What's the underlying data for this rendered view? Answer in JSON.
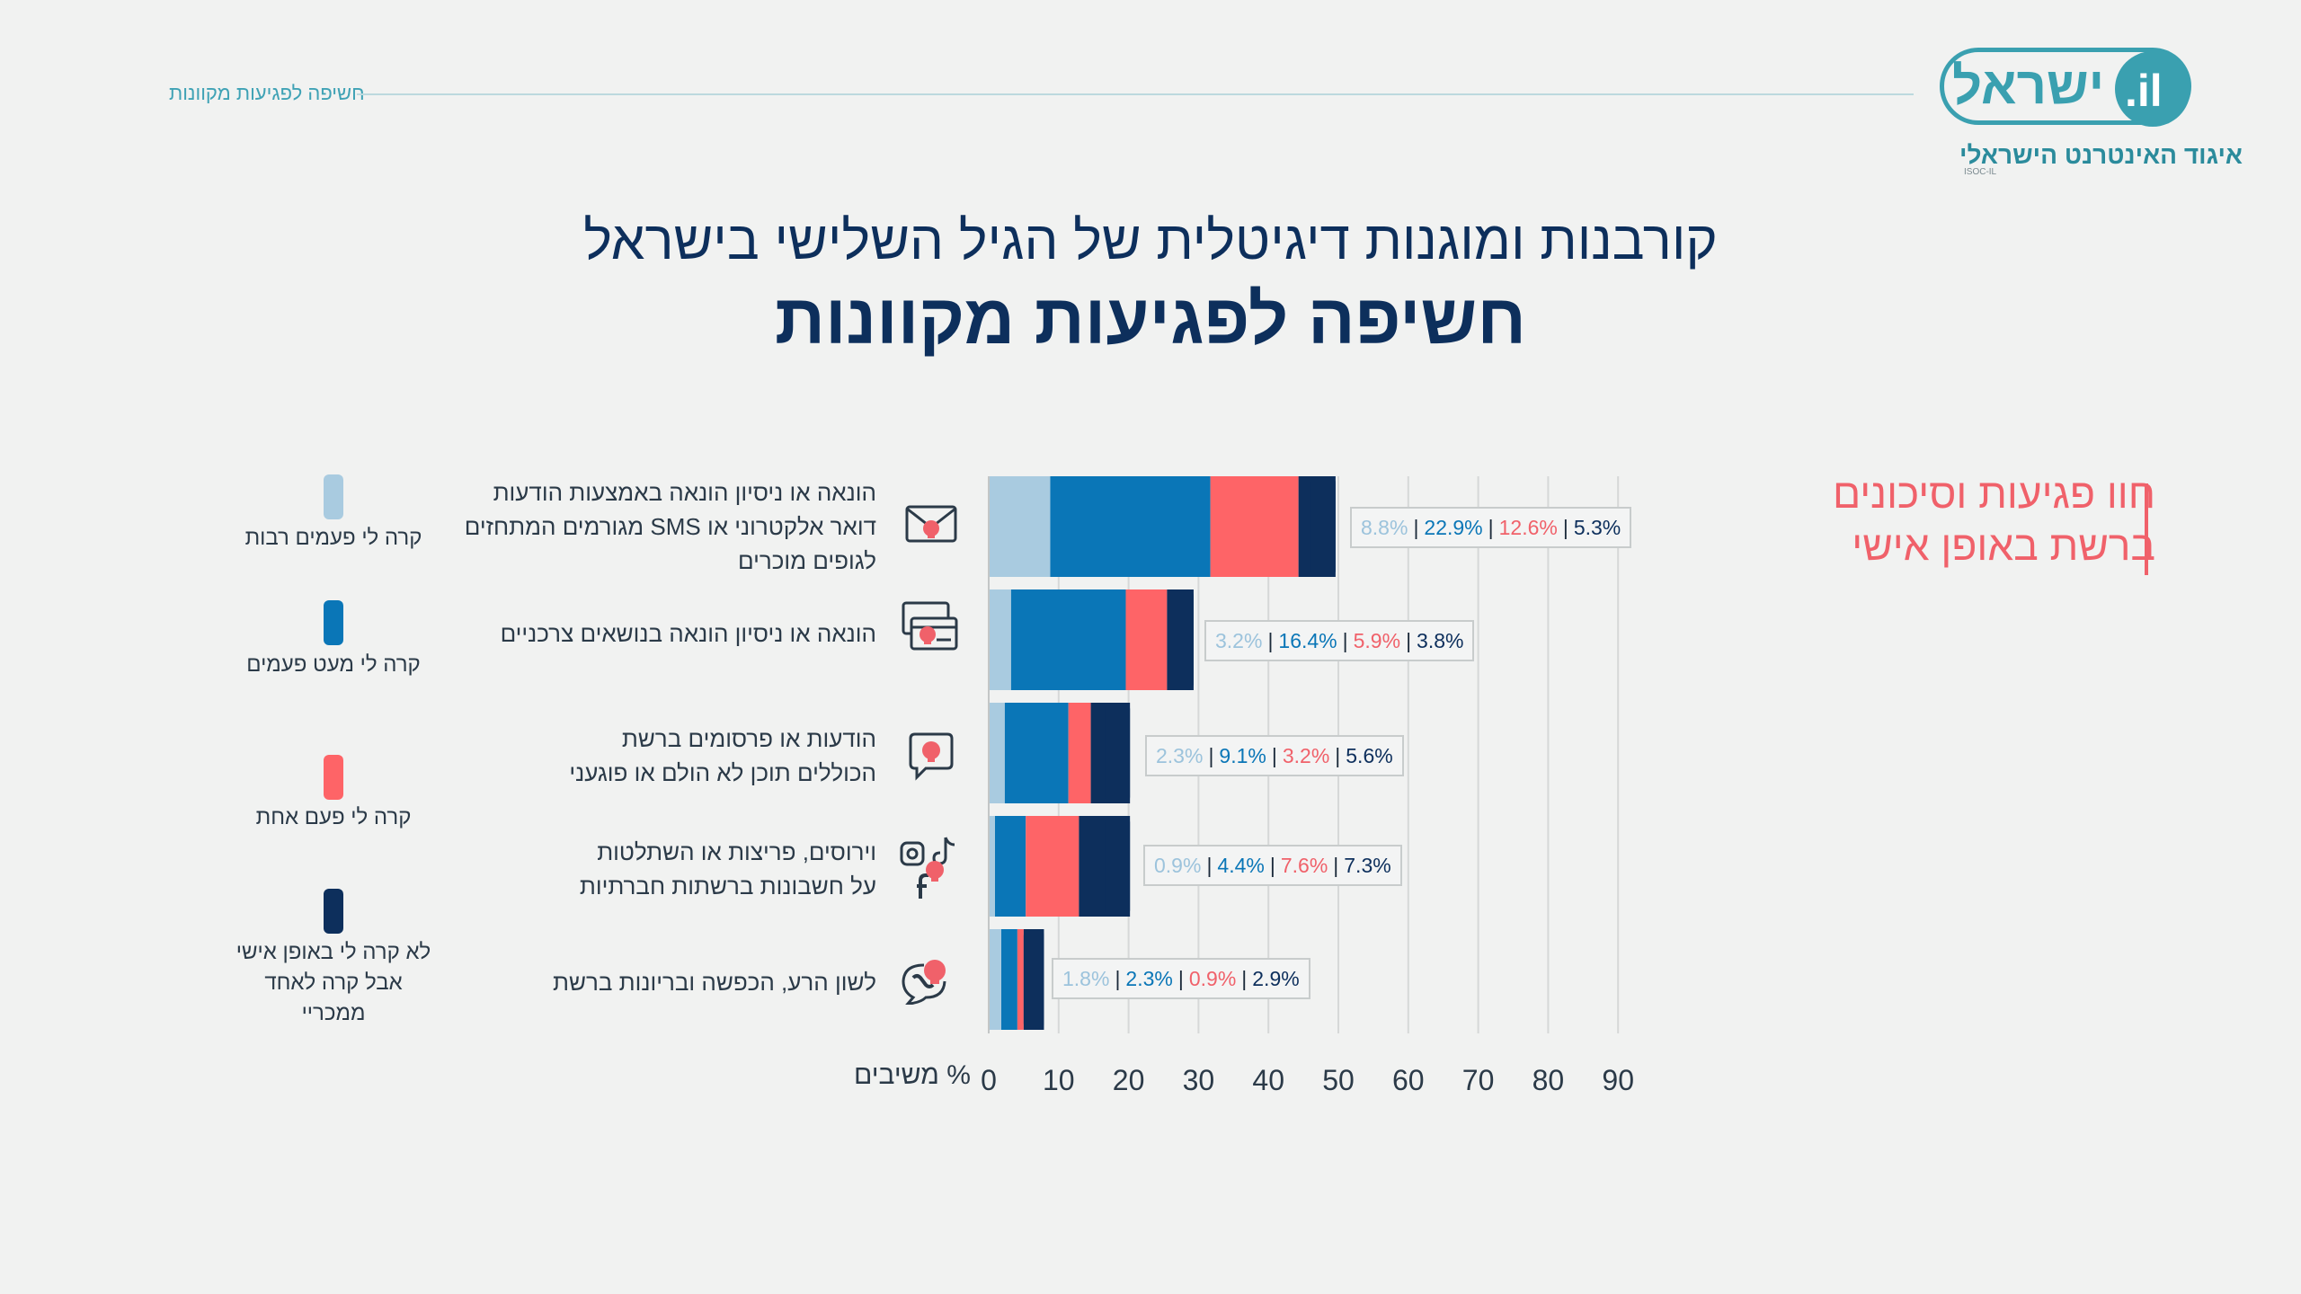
{
  "header": {
    "section_label": "חשיפה לפגיעות מקוונות",
    "logo_text": "ישראל",
    "logo_tld": ".il",
    "org_name": "איגוד האינטרנט הישראלי",
    "org_abbr": "ISOC-IL"
  },
  "titles": {
    "subtitle": "קורבנות ומוגנות דיגיטלית של הגיל השלישי בישראל",
    "main": "חשיפה לפגיעות מקוונות"
  },
  "side_title": {
    "line1": "חוו פגיעות וסיכונים",
    "line2": "ברשת באופן אישי"
  },
  "legend": [
    {
      "lines": [
        "קרה לי פעמים רבות"
      ],
      "color": "#a9cbe0"
    },
    {
      "lines": [
        "קרה לי מעט פעמים"
      ],
      "color": "#0a76b7"
    },
    {
      "lines": [
        "קרה לי פעם אחת"
      ],
      "color": "#fe6467"
    },
    {
      "lines": [
        "לא קרה לי באופן אישי",
        "אבל קרה לאחד ממכריי"
      ],
      "color": "#0d2f5c"
    }
  ],
  "categories": [
    {
      "lines": [
        "הונאה או ניסיון הונאה באמצעות הודעות",
        "דואר אלקטרוני או SMS מגורמים המתחזים",
        "לגופים מוכרים"
      ],
      "icon": "envelope-skull-icon"
    },
    {
      "lines": [
        "הונאה או ניסיון הונאה בנושאים צרכניים"
      ],
      "icon": "credit-card-skull-icon"
    },
    {
      "lines": [
        "הודעות או פרסומים ברשת",
        "הכוללים תוכן לא הולם או פוגעני"
      ],
      "icon": "chat-bubble-skull-icon"
    },
    {
      "lines": [
        "וירוסים, פריצות או השתלטות",
        "על חשבונות ברשתות חברתיות"
      ],
      "icon": "social-media-skull-icon"
    },
    {
      "lines": [
        "לשון הרע, הכפשה ובריונות ברשת"
      ],
      "icon": "speech-bubble-skull-icon"
    }
  ],
  "axis": {
    "unit_label": "% משיבים",
    "ticks": [
      "0",
      "10",
      "20",
      "30",
      "40",
      "50",
      "60",
      "70",
      "80",
      "90"
    ]
  },
  "colors": {
    "many_times": "#a9cbe0",
    "few_times": "#0a76b7",
    "once": "#fe6467",
    "acquaintance": "#0d2f5c",
    "accent": "#f0616a",
    "brand": "#3aa0b0"
  },
  "chart_data": {
    "type": "bar",
    "orientation": "horizontal",
    "stacked": true,
    "xlim": [
      0,
      90
    ],
    "xlabel": "% משיבים",
    "grid": true,
    "categories": [
      "הונאה או ניסיון הונאה באמצעות הודעות דואר אלקטרוני או SMS מגורמים המתחזים לגופים מוכרים",
      "הונאה או ניסיון הונאה בנושאים צרכניים",
      "הודעות או פרסומים ברשת הכוללים תוכן לא הולם או פוגעני",
      "וירוסים, פריצות או השתלטות על חשבונות ברשתות חברתיות",
      "לשון הרע, הכפשה ובריונות ברשת"
    ],
    "series": [
      {
        "name": "קרה לי פעמים רבות",
        "values": [
          8.8,
          3.2,
          2.3,
          0.9,
          1.8
        ],
        "labels": [
          "8.8%",
          "3.2%",
          "2.3%",
          "0.9%",
          "1.8%"
        ]
      },
      {
        "name": "קרה לי מעט פעמים",
        "values": [
          22.9,
          16.4,
          9.1,
          4.4,
          2.3
        ],
        "labels": [
          "22.9%",
          "16.4%",
          "9.1%",
          "4.4%",
          "2.3%"
        ]
      },
      {
        "name": "קרה לי פעם אחת",
        "values": [
          12.6,
          5.9,
          3.2,
          7.6,
          0.9
        ],
        "labels": [
          "12.6%",
          "5.9%",
          "3.2%",
          "7.6%",
          "0.9%"
        ]
      },
      {
        "name": "לא קרה לי באופן אישי אבל קרה לאחד ממכריי",
        "values": [
          5.3,
          3.8,
          5.6,
          7.3,
          2.9
        ],
        "labels": [
          "5.3%",
          "3.8%",
          "5.6%",
          "7.3%",
          "2.9%"
        ]
      }
    ]
  }
}
